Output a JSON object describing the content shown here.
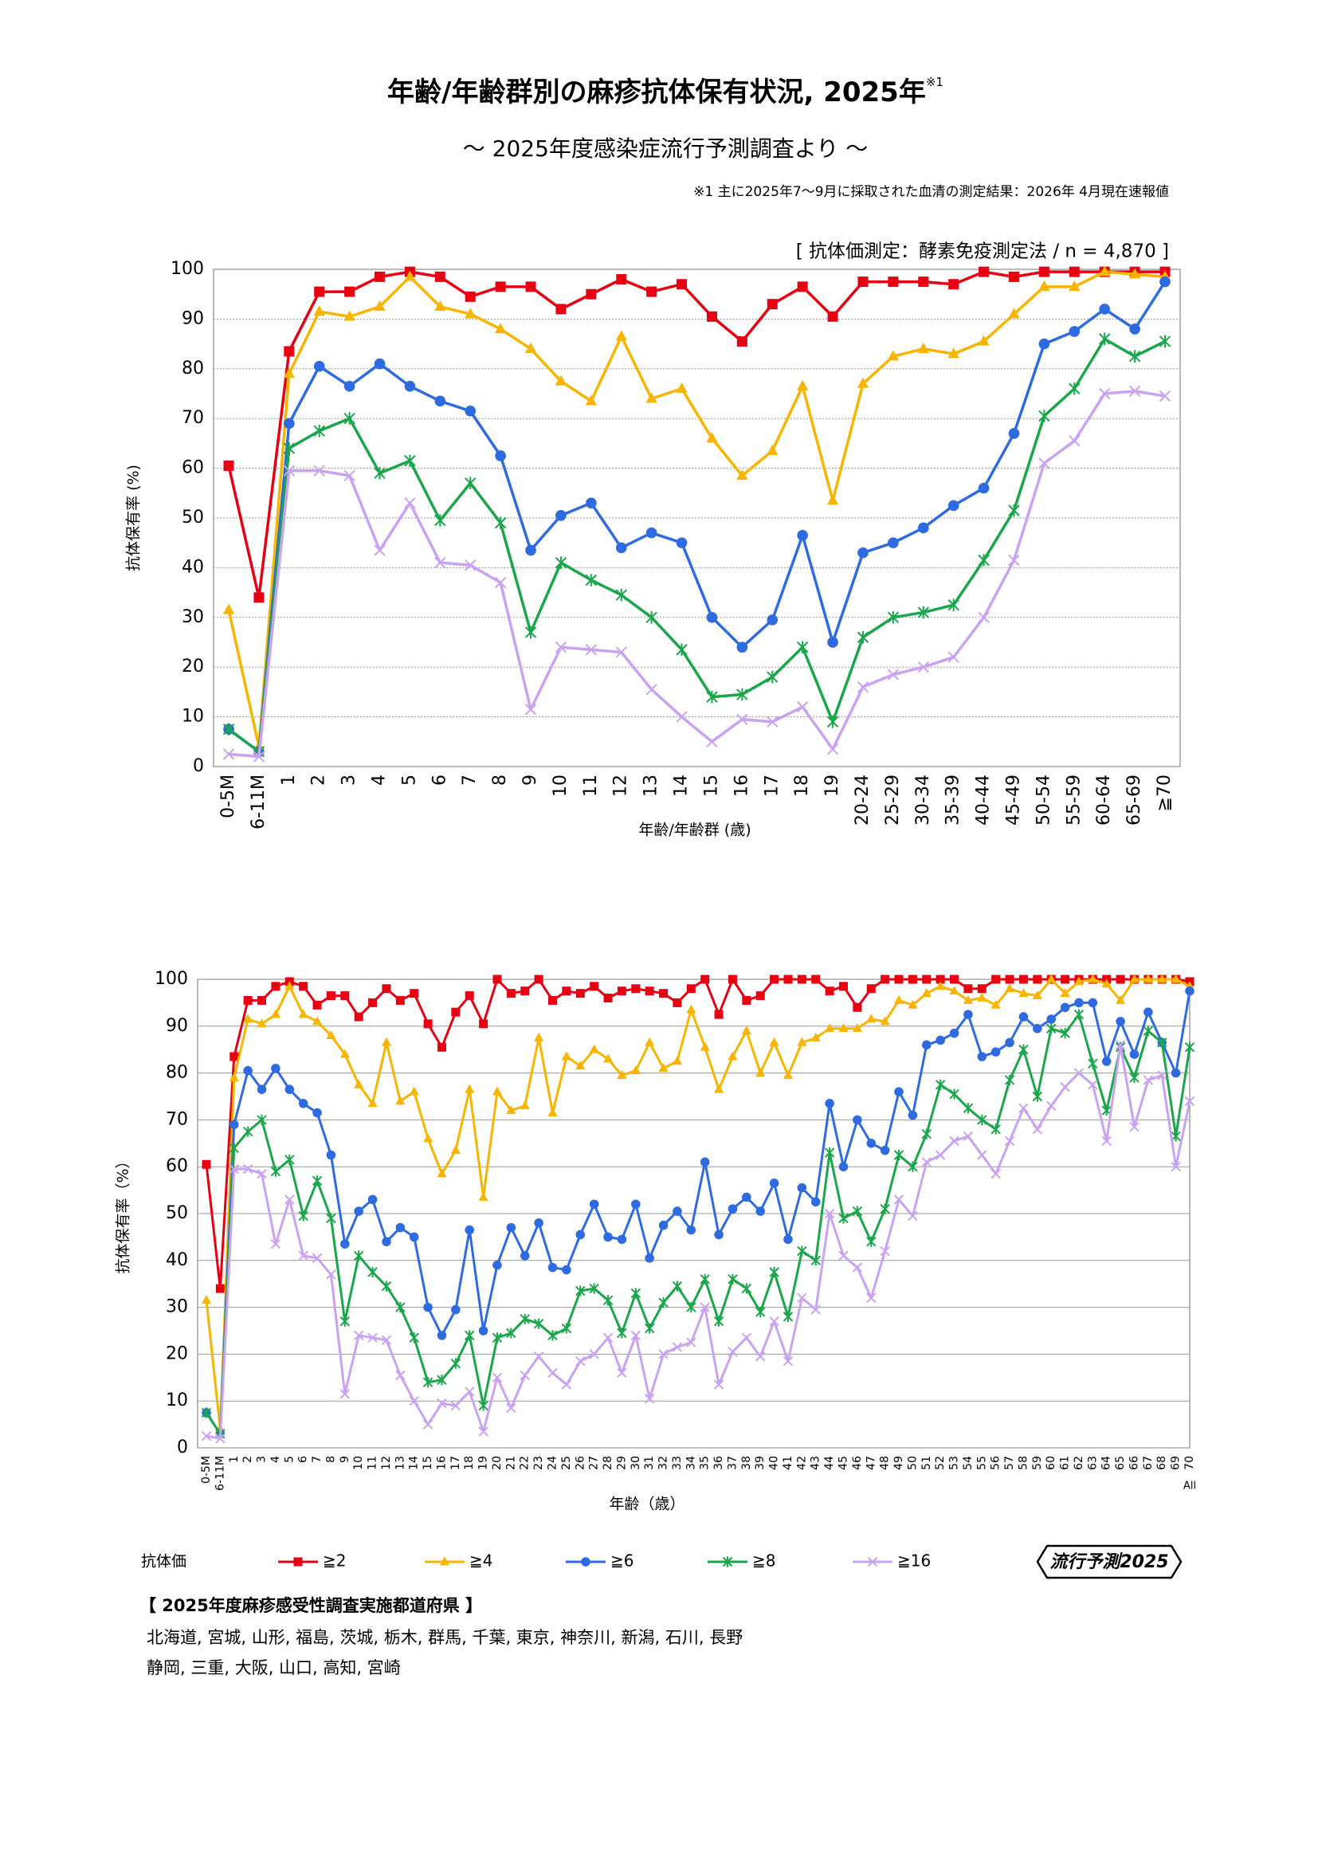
{
  "header": {
    "title": "年齢/年齢群別の麻疹抗体保有状況, 2025年",
    "title_note": "※1",
    "subtitle": "～ 2025年度感染症流行予測調査より ～",
    "footnote": "※1  主に2025年7～9月に採取された血清の測定結果：2026年 4月現在速報値"
  },
  "chart_data": [
    {
      "type": "line",
      "annotation": "[ 抗体価測定：酵素免疫測定法 / n = 4,870 ]",
      "x_label": "年齢/年齢群 (歳)",
      "y_label": "抗体保有率 (%)",
      "categories": [
        "0-5M",
        "6-11M",
        "1",
        "2",
        "3",
        "4",
        "5",
        "6",
        "7",
        "8",
        "9",
        "10",
        "11",
        "12",
        "13",
        "14",
        "15",
        "16",
        "17",
        "18",
        "19",
        "20-24",
        "25-29",
        "30-34",
        "35-39",
        "40-44",
        "45-49",
        "50-54",
        "55-59",
        "60-64",
        "65-69",
        "≧70"
      ],
      "ylim": [
        0,
        100
      ],
      "yticks": [
        0,
        10,
        20,
        30,
        40,
        50,
        60,
        70,
        80,
        90,
        100
      ],
      "grid": true,
      "series": [
        {
          "name": "≧2",
          "color": "#e60012",
          "marker": "square",
          "values": [
            60.5,
            34,
            83.5,
            95.5,
            95.5,
            98.5,
            99.5,
            98.5,
            94.5,
            96.5,
            96.5,
            92,
            95,
            98,
            95.5,
            97,
            90.5,
            85.5,
            93,
            96.5,
            90.5,
            97.5,
            97.5,
            97.5,
            97,
            99.5,
            98.5,
            99.5,
            99.5,
            99.5,
            99.5,
            99.5
          ]
        },
        {
          "name": "≧4",
          "color": "#f7b500",
          "marker": "triangle",
          "values": [
            31.5,
            4,
            79,
            91.5,
            90.5,
            92.5,
            98.5,
            92.5,
            91,
            88,
            84,
            77.5,
            73.5,
            86.5,
            74,
            76,
            66,
            58.5,
            63.5,
            76.5,
            53.5,
            77,
            82.5,
            84,
            83,
            85.5,
            91,
            96.5,
            96.5,
            99.5,
            99,
            98.5
          ]
        },
        {
          "name": "≧6",
          "color": "#2f6be0",
          "marker": "circle",
          "values": [
            7.5,
            3,
            69,
            80.5,
            76.5,
            81,
            76.5,
            73.5,
            71.5,
            62.5,
            43.5,
            50.5,
            53,
            44,
            47,
            45,
            30,
            24,
            29.5,
            46.5,
            25,
            43,
            45,
            48,
            52.5,
            56,
            67,
            85,
            87.5,
            92,
            88,
            97.5
          ]
        },
        {
          "name": "≧8",
          "color": "#1aa64a",
          "marker": "asterisk",
          "values": [
            7.5,
            3,
            64,
            67.5,
            70,
            59,
            61.5,
            49.5,
            57,
            49,
            27,
            41,
            37.5,
            34.5,
            30,
            23.5,
            14,
            14.5,
            18,
            24,
            9,
            26,
            30,
            31,
            32.5,
            41.5,
            51.5,
            70.5,
            76,
            86,
            82.5,
            85.5
          ]
        },
        {
          "name": "≧16",
          "color": "#c9a3f2",
          "marker": "cross",
          "values": [
            2.5,
            2,
            59.5,
            59.5,
            58.5,
            43.5,
            53,
            41,
            40.5,
            37,
            11.5,
            24,
            23.5,
            23,
            15.5,
            10,
            5,
            9.5,
            9,
            12,
            3.5,
            16,
            18.5,
            20,
            22,
            30,
            41.5,
            61,
            65.5,
            75,
            75.5,
            74.5
          ]
        }
      ]
    },
    {
      "type": "line",
      "x_label": "年齢（歳）",
      "y_label": "抗体保有率（%）",
      "x_note": "All",
      "categories": [
        "0-5M",
        "6-11M",
        "1",
        "2",
        "3",
        "4",
        "5",
        "6",
        "7",
        "8",
        "9",
        "10",
        "11",
        "12",
        "13",
        "14",
        "15",
        "16",
        "17",
        "18",
        "19",
        "20",
        "21",
        "22",
        "23",
        "24",
        "25",
        "26",
        "27",
        "28",
        "29",
        "30",
        "31",
        "32",
        "33",
        "34",
        "35",
        "36",
        "37",
        "38",
        "39",
        "40",
        "41",
        "42",
        "43",
        "44",
        "45",
        "46",
        "47",
        "48",
        "49",
        "50",
        "51",
        "52",
        "53",
        "54",
        "55",
        "56",
        "57",
        "58",
        "59",
        "60",
        "61",
        "62",
        "63",
        "64",
        "65",
        "66",
        "67",
        "68",
        "69",
        "70"
      ],
      "ylim": [
        0,
        100
      ],
      "yticks": [
        0,
        10,
        20,
        30,
        40,
        50,
        60,
        70,
        80,
        90,
        100
      ],
      "grid": true,
      "series": [
        {
          "color": "#e60012",
          "marker": "square",
          "values": [
            60.5,
            34,
            83.5,
            95.5,
            95.5,
            98.5,
            99.5,
            98.5,
            94.5,
            96.5,
            96.5,
            92,
            95,
            98,
            95.5,
            97,
            90.5,
            85.5,
            93,
            96.5,
            90.5,
            100,
            97,
            97.5,
            100,
            95.5,
            97.5,
            97,
            98.5,
            96,
            97.5,
            98,
            97.5,
            97,
            95,
            98,
            100,
            92.5,
            100,
            95.5,
            96.5,
            100,
            100,
            100,
            100,
            97.5,
            98.5,
            94,
            98,
            100,
            100,
            100,
            100,
            100,
            100,
            98,
            98,
            100,
            100,
            100,
            100,
            100,
            100,
            100,
            100,
            100,
            100,
            100,
            100,
            100,
            100,
            99.5
          ]
        },
        {
          "color": "#f7b500",
          "marker": "triangle",
          "values": [
            31.5,
            4,
            79,
            91.5,
            90.5,
            92.5,
            98.5,
            92.5,
            91,
            88,
            84,
            77.5,
            73.5,
            86.5,
            74,
            76,
            66,
            58.5,
            63.5,
            76.5,
            53.5,
            76,
            72,
            73,
            87.5,
            71.5,
            83.5,
            81.5,
            85,
            83,
            79.5,
            80.5,
            86.5,
            81,
            82.5,
            93.5,
            85.5,
            76.5,
            83.5,
            89,
            80,
            86.5,
            79.5,
            86.5,
            87.5,
            89.5,
            89.5,
            89.5,
            91.5,
            91,
            95.5,
            94.5,
            97,
            98.5,
            97.5,
            95.5,
            96,
            94.5,
            98,
            97,
            96.5,
            100,
            97,
            99.5,
            100,
            99,
            95.5,
            100,
            100,
            100,
            100,
            98.5
          ]
        },
        {
          "color": "#2f6be0",
          "marker": "circle",
          "values": [
            7.5,
            3,
            69,
            80.5,
            76.5,
            81,
            76.5,
            73.5,
            71.5,
            62.5,
            43.5,
            50.5,
            53,
            44,
            47,
            45,
            30,
            24,
            29.5,
            46.5,
            25,
            39,
            47,
            41,
            48,
            38.5,
            38,
            45.5,
            52,
            45,
            44.5,
            52,
            40.5,
            47.5,
            50.5,
            46.5,
            61,
            45.5,
            51,
            53.5,
            50.5,
            56.5,
            44.5,
            55.5,
            52.5,
            73.5,
            60,
            70,
            65,
            63.5,
            76,
            71,
            86,
            87,
            88.5,
            92.5,
            83.5,
            84.5,
            86.5,
            92,
            89.5,
            91.5,
            94,
            95,
            95,
            82.5,
            91,
            84,
            93,
            86.5,
            80,
            97.5
          ]
        },
        {
          "color": "#1aa64a",
          "marker": "asterisk",
          "values": [
            7.5,
            3,
            64,
            67.5,
            70,
            59,
            61.5,
            49.5,
            57,
            49,
            27,
            41,
            37.5,
            34.5,
            30,
            23.5,
            14,
            14.5,
            18,
            24,
            9,
            23.5,
            24.5,
            27.5,
            26.5,
            24,
            25.5,
            33.5,
            34,
            31.5,
            24.5,
            33,
            25.5,
            31,
            34.5,
            30,
            36,
            27,
            36,
            34,
            29,
            37.5,
            28,
            42,
            40,
            63,
            49,
            50.5,
            44,
            51,
            62.5,
            60,
            67,
            77.5,
            75.5,
            72.5,
            70,
            68,
            78.5,
            85,
            75,
            89.5,
            88.5,
            92.5,
            82,
            72,
            85.5,
            79,
            89,
            86.5,
            66.5,
            85.5
          ]
        },
        {
          "color": "#c9a3f2",
          "marker": "cross",
          "values": [
            2.5,
            2,
            59.5,
            59.5,
            58.5,
            43.5,
            53,
            41,
            40.5,
            37,
            11.5,
            24,
            23.5,
            23,
            15.5,
            10,
            5,
            9.5,
            9,
            12,
            3.5,
            15,
            8.5,
            15.5,
            19.5,
            16,
            13.5,
            18.5,
            20,
            23.5,
            16,
            24,
            10.5,
            20,
            21.5,
            22.5,
            30,
            13.5,
            20.5,
            23.5,
            19.5,
            27,
            18.5,
            32,
            29.5,
            50,
            41,
            38.5,
            32,
            42,
            53,
            49.5,
            61,
            62.5,
            65.5,
            66.5,
            62.5,
            58.5,
            65.5,
            72.5,
            68,
            73,
            77,
            80,
            77.5,
            65.5,
            86,
            68.5,
            78.5,
            79.5,
            60,
            74
          ]
        }
      ]
    }
  ],
  "legend": {
    "title": "抗体価"
  },
  "logo": "流行予測2025",
  "prefectures": {
    "heading": "【 2025年度麻疹感受性調査実施都道府県 】",
    "lines": [
      "北海道,  宮城,  山形,  福島,  茨城,  栃木,  群馬,  千葉,  東京,  神奈川,  新潟,  石川,  長野",
      "静岡,  三重,  大阪,  山口,  高知,  宮崎"
    ]
  }
}
